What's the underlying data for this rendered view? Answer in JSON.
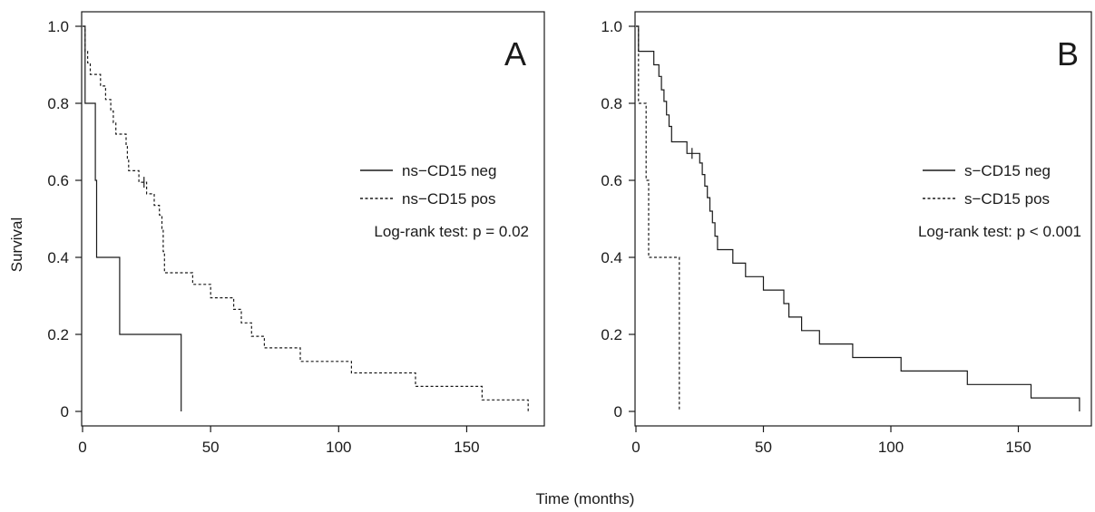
{
  "figure": {
    "shared_xlabel": "Time (months)",
    "shared_ylabel": "Survival",
    "style": {
      "line_color": "#1a1a1a",
      "background": "#ffffff"
    }
  },
  "chart_data": [
    {
      "type": "line",
      "panel_label": "A",
      "title": "",
      "xlabel": "Time (months)",
      "ylabel": "Survival",
      "xlim": [
        0,
        175
      ],
      "ylim": [
        0,
        1.0
      ],
      "xticks": [
        0,
        50,
        100,
        150
      ],
      "yticks": [
        0,
        0.2,
        0.4,
        0.6,
        0.8,
        1.0
      ],
      "xtick_labels": [
        "0",
        "50",
        "100",
        "150"
      ],
      "ytick_labels": [
        "0",
        "0.2",
        "0.4",
        "0.6",
        "0.8",
        "1.0"
      ],
      "grid": false,
      "legend_position": "right",
      "annotation": "Log-rank test: p = 0.02",
      "series": [
        {
          "name": "ns−CD15 neg",
          "dash": "solid",
          "step": true,
          "points": [
            [
              0,
              1.0
            ],
            [
              1,
              0.8
            ],
            [
              5,
              0.6
            ],
            [
              5.5,
              0.4
            ],
            [
              14.5,
              0.2
            ],
            [
              38.5,
              0
            ]
          ],
          "censored": []
        },
        {
          "name": "ns−CD15 pos",
          "dash": "dashed",
          "step": true,
          "points": [
            [
              0,
              1.0
            ],
            [
              1,
              0.935
            ],
            [
              2,
              0.905
            ],
            [
              3,
              0.875
            ],
            [
              7,
              0.845
            ],
            [
              9,
              0.81
            ],
            [
              11,
              0.78
            ],
            [
              12,
              0.75
            ],
            [
              13,
              0.72
            ],
            [
              17,
              0.69
            ],
            [
              17.5,
              0.655
            ],
            [
              18,
              0.625
            ],
            [
              22,
              0.595
            ],
            [
              25,
              0.565
            ],
            [
              28,
              0.535
            ],
            [
              30,
              0.51
            ],
            [
              31,
              0.475
            ],
            [
              31.5,
              0.415
            ],
            [
              32,
              0.36
            ],
            [
              43,
              0.33
            ],
            [
              50,
              0.295
            ],
            [
              59,
              0.265
            ],
            [
              62,
              0.23
            ],
            [
              66,
              0.195
            ],
            [
              71,
              0.165
            ],
            [
              85,
              0.13
            ],
            [
              105,
              0.1
            ],
            [
              130,
              0.065
            ],
            [
              156,
              0.03
            ],
            [
              174,
              0.0
            ]
          ],
          "censored": [
            [
              24,
              0.595
            ]
          ]
        }
      ]
    },
    {
      "type": "line",
      "panel_label": "B",
      "title": "",
      "xlabel": "Time (months)",
      "ylabel": "Survival",
      "xlim": [
        0,
        175
      ],
      "ylim": [
        0,
        1.0
      ],
      "xticks": [
        0,
        50,
        100,
        150
      ],
      "yticks": [
        0,
        0.2,
        0.4,
        0.6,
        0.8,
        1.0
      ],
      "xtick_labels": [
        "0",
        "50",
        "100",
        "150"
      ],
      "ytick_labels": [
        "0",
        "0.2",
        "0.4",
        "0.6",
        "0.8",
        "1.0"
      ],
      "grid": false,
      "legend_position": "right",
      "annotation": "Log-rank test: p < 0.001",
      "series": [
        {
          "name": "s−CD15 neg",
          "dash": "solid",
          "step": true,
          "points": [
            [
              0,
              1.0
            ],
            [
              1,
              0.935
            ],
            [
              7,
              0.9
            ],
            [
              9,
              0.87
            ],
            [
              10,
              0.835
            ],
            [
              11,
              0.805
            ],
            [
              12,
              0.77
            ],
            [
              13,
              0.74
            ],
            [
              14,
              0.7
            ],
            [
              17,
              0.7
            ],
            [
              20,
              0.67
            ],
            [
              25,
              0.645
            ],
            [
              26,
              0.615
            ],
            [
              27,
              0.585
            ],
            [
              28,
              0.555
            ],
            [
              29,
              0.52
            ],
            [
              30,
              0.49
            ],
            [
              31,
              0.455
            ],
            [
              32,
              0.42
            ],
            [
              38,
              0.385
            ],
            [
              43,
              0.35
            ],
            [
              50,
              0.315
            ],
            [
              58,
              0.28
            ],
            [
              60,
              0.245
            ],
            [
              65,
              0.21
            ],
            [
              72,
              0.175
            ],
            [
              85,
              0.14
            ],
            [
              104,
              0.105
            ],
            [
              130,
              0.07
            ],
            [
              155,
              0.035
            ],
            [
              172,
              0.035
            ],
            [
              174,
              0.0
            ]
          ],
          "censored": [
            [
              22,
              0.67
            ]
          ]
        },
        {
          "name": "s−CD15 pos",
          "dash": "dashed",
          "step": true,
          "points": [
            [
              0,
              1.0
            ],
            [
              1,
              0.8
            ],
            [
              4,
              0.6
            ],
            [
              5,
              0.4
            ],
            [
              17,
              0.0
            ]
          ],
          "censored": []
        }
      ]
    }
  ]
}
